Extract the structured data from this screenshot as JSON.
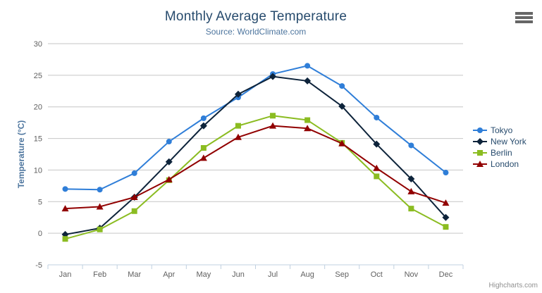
{
  "chart_data": {
    "type": "line",
    "title": "Monthly Average Temperature",
    "subtitle": "Source: WorldClimate.com",
    "xlabel": "",
    "ylabel": "Temperature (°C)",
    "ylim": [
      -5,
      30
    ],
    "y_tick_interval": 5,
    "y_tick_labels": [
      "-5",
      "0",
      "5",
      "10",
      "15",
      "20",
      "25",
      "30"
    ],
    "categories": [
      "Jan",
      "Feb",
      "Mar",
      "Apr",
      "May",
      "Jun",
      "Jul",
      "Aug",
      "Sep",
      "Oct",
      "Nov",
      "Dec"
    ],
    "series": [
      {
        "name": "Tokyo",
        "color": "#2f7ed8",
        "marker": "circle",
        "values": [
          7.0,
          6.9,
          9.5,
          14.5,
          18.2,
          21.5,
          25.2,
          26.5,
          23.3,
          18.3,
          13.9,
          9.6
        ]
      },
      {
        "name": "New York",
        "color": "#0d233a",
        "marker": "diamond",
        "values": [
          -0.2,
          0.8,
          5.7,
          11.3,
          17.0,
          22.0,
          24.8,
          24.1,
          20.1,
          14.1,
          8.6,
          2.5
        ]
      },
      {
        "name": "Berlin",
        "color": "#8bbc21",
        "marker": "square",
        "values": [
          -0.9,
          0.6,
          3.5,
          8.4,
          13.5,
          17.0,
          18.6,
          17.9,
          14.3,
          9.0,
          3.9,
          1.0
        ]
      },
      {
        "name": "London",
        "color": "#910000",
        "marker": "triangle",
        "values": [
          3.9,
          4.2,
          5.7,
          8.5,
          11.9,
          15.2,
          17.0,
          16.6,
          14.2,
          10.3,
          6.6,
          4.8
        ]
      }
    ],
    "legend_position": "right",
    "grid": true
  },
  "colors": {
    "title": "#274b6d",
    "subtitle": "#4d759e",
    "axis_labels": "#606060",
    "axis_title": "#4d759e",
    "grid_line": "#c6c6c6",
    "axis_line": "#c0d0e0",
    "legend_text": "#274b6d",
    "credits": "#909090",
    "export_icon": "#666666",
    "background": "#ffffff"
  },
  "credits": {
    "text": "Highcharts.com"
  },
  "export_menu": {
    "icon": "hamburger-icon"
  }
}
